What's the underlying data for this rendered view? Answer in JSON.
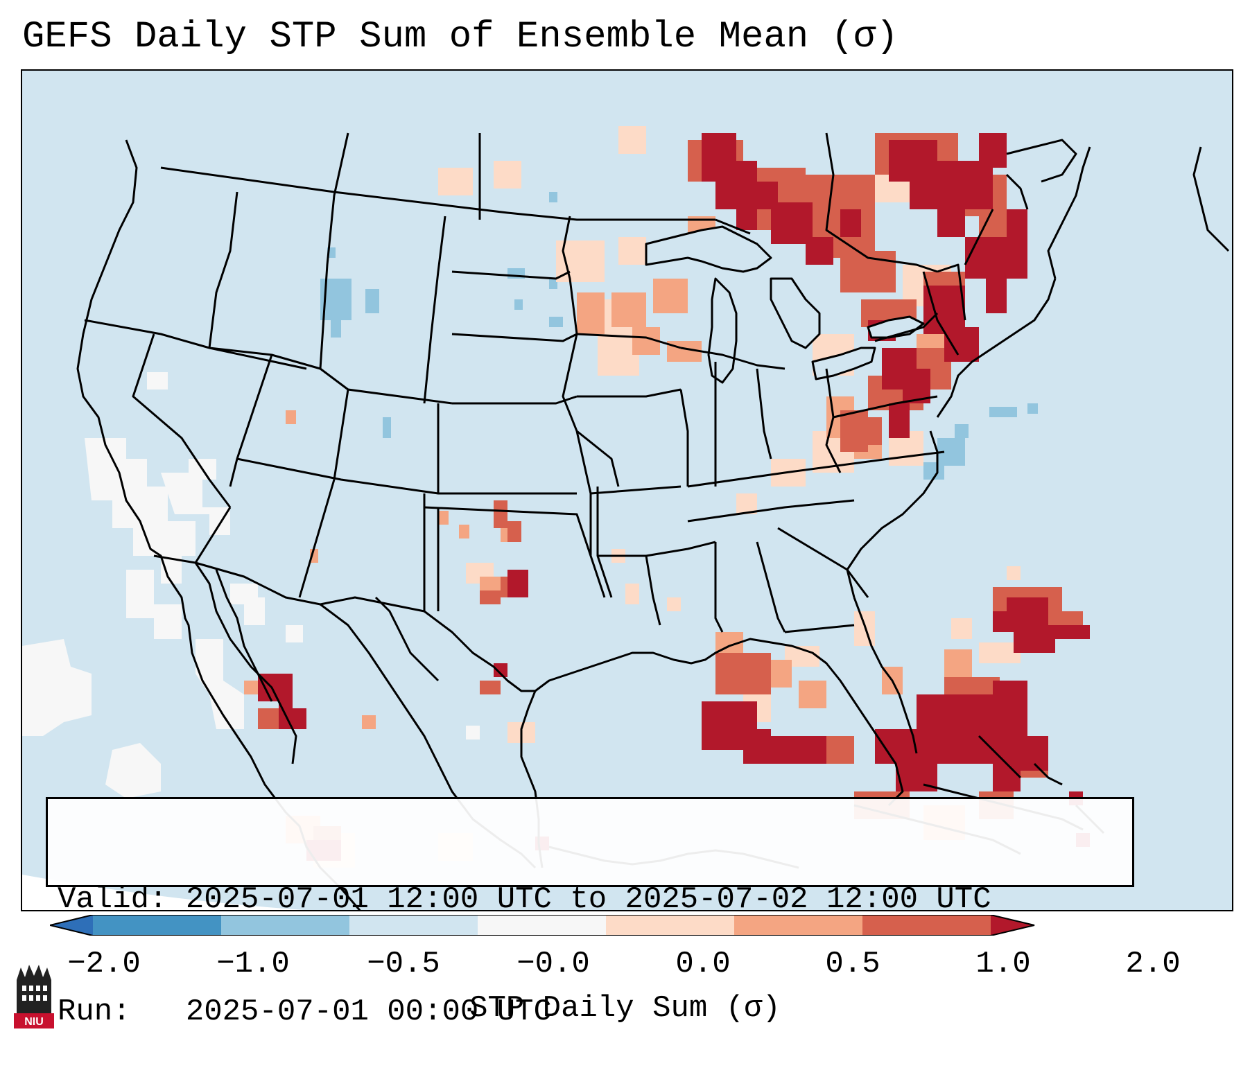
{
  "title": "GEFS Daily STP Sum of Ensemble Mean (σ)",
  "info": {
    "valid_line": "Valid: 2025-07-01 12:00 UTC to 2025-07-02 12:00 UTC",
    "run_line": "Run:   2025-07-01 00:00 UTC"
  },
  "colorbar": {
    "label": "STP Daily Sum (σ)",
    "ticks": [
      "−2.0",
      "−1.0",
      "−0.5",
      "−0.0",
      "0.0",
      "0.5",
      "1.0",
      "2.0"
    ],
    "bins": [
      {
        "from": "<-2.0",
        "color": "#2e6fb8"
      },
      {
        "from": "-2.0",
        "color": "#4393c3"
      },
      {
        "from": "-1.0",
        "color": "#92c5de"
      },
      {
        "from": "-0.5",
        "color": "#d1e5f0"
      },
      {
        "from": "-0.0",
        "color": "#f7f7f7"
      },
      {
        "from": "0.0",
        "color": "#fddbc7"
      },
      {
        "from": "0.5",
        "color": "#f4a582"
      },
      {
        "from": "1.0",
        "color": "#d6604d"
      },
      {
        "from": ">2.0",
        "color": "#b2182b"
      }
    ]
  },
  "colors": {
    "background_field": "#d1e5f0",
    "neutral": "#f7f7f7",
    "light_pos": "#fddbc7",
    "mid_pos": "#f4a582",
    "high_pos": "#d6604d",
    "max_pos": "#b2182b",
    "light_neg": "#92c5de"
  },
  "logo": {
    "text": "NIU",
    "icon": "niu-building-icon"
  }
}
